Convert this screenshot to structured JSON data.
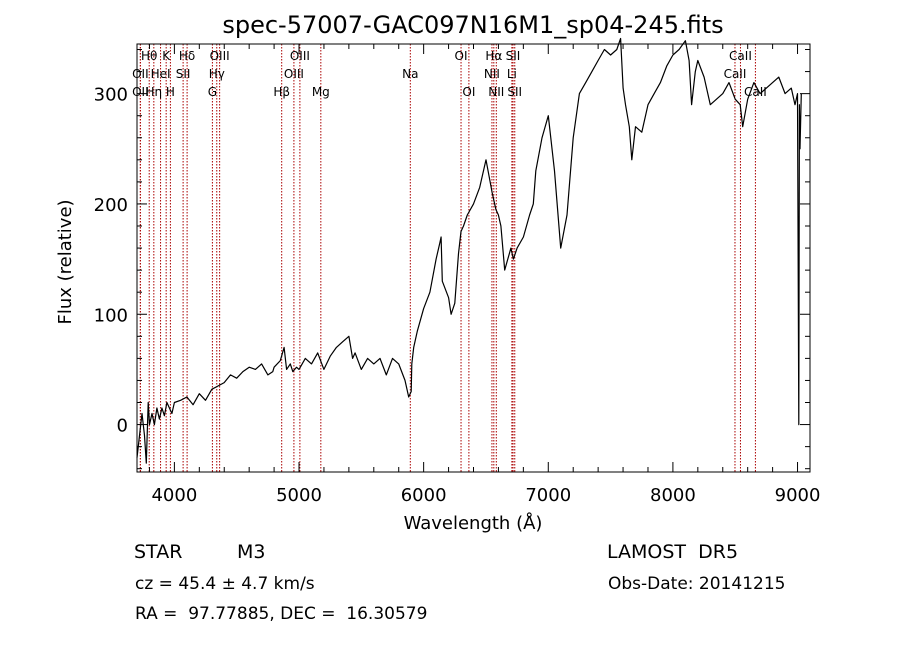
{
  "chart_data": {
    "type": "line",
    "title": "spec-57007-GAC097N16M1_sp04-245.fits",
    "xlabel": "Wavelength (Å)",
    "ylabel": "Flux (relative)",
    "xlim": [
      3700,
      9100
    ],
    "ylim": [
      -43,
      345
    ],
    "xticks": [
      4000,
      5000,
      6000,
      7000,
      8000,
      9000
    ],
    "yticks": [
      0,
      100,
      200,
      300
    ],
    "grid": false,
    "line_color": "#000000",
    "marker_color": "#aa0000",
    "spectrum": {
      "x": [
        3700,
        3740,
        3760,
        3775,
        3790,
        3800,
        3820,
        3840,
        3860,
        3880,
        3900,
        3920,
        3940,
        3960,
        3980,
        4000,
        4050,
        4100,
        4150,
        4200,
        4250,
        4300,
        4350,
        4400,
        4450,
        4500,
        4550,
        4600,
        4650,
        4700,
        4750,
        4790,
        4800,
        4850,
        4880,
        4900,
        4930,
        4950,
        4980,
        5000,
        5050,
        5100,
        5150,
        5200,
        5250,
        5300,
        5350,
        5400,
        5430,
        5450,
        5500,
        5550,
        5600,
        5650,
        5700,
        5750,
        5800,
        5850,
        5880,
        5900,
        5905,
        5920,
        5950,
        6000,
        6050,
        6100,
        6130,
        6140,
        6150,
        6200,
        6220,
        6250,
        6280,
        6300,
        6320,
        6350,
        6400,
        6450,
        6500,
        6550,
        6580,
        6600,
        6620,
        6650,
        6700,
        6720,
        6750,
        6800,
        6850,
        6880,
        6900,
        6950,
        7000,
        7050,
        7100,
        7150,
        7200,
        7250,
        7300,
        7350,
        7400,
        7450,
        7500,
        7550,
        7580,
        7600,
        7620,
        7650,
        7670,
        7700,
        7750,
        7800,
        7850,
        7900,
        7950,
        8000,
        8050,
        8100,
        8130,
        8150,
        8180,
        8200,
        8250,
        8280,
        8300,
        8350,
        8400,
        8450,
        8500,
        8540,
        8560,
        8600,
        8650,
        8700,
        8750,
        8800,
        8850,
        8900,
        8950,
        8980,
        9000,
        9010,
        9015,
        9020,
        9030
      ],
      "y": [
        -30,
        10,
        -10,
        -35,
        20,
        0,
        10,
        0,
        15,
        5,
        15,
        8,
        20,
        15,
        10,
        20,
        22,
        25,
        18,
        28,
        22,
        32,
        35,
        38,
        45,
        42,
        48,
        52,
        50,
        55,
        45,
        48,
        52,
        58,
        70,
        50,
        55,
        48,
        52,
        50,
        60,
        55,
        65,
        50,
        62,
        70,
        75,
        80,
        60,
        65,
        50,
        60,
        55,
        60,
        45,
        60,
        55,
        40,
        25,
        30,
        55,
        70,
        85,
        105,
        120,
        150,
        165,
        170,
        130,
        115,
        100,
        110,
        155,
        175,
        180,
        190,
        200,
        215,
        240,
        210,
        195,
        190,
        180,
        140,
        160,
        150,
        160,
        170,
        190,
        200,
        230,
        260,
        280,
        230,
        160,
        190,
        260,
        300,
        310,
        320,
        330,
        340,
        335,
        340,
        350,
        305,
        290,
        270,
        240,
        270,
        265,
        290,
        300,
        310,
        325,
        335,
        340,
        348,
        330,
        290,
        320,
        330,
        315,
        300,
        290,
        295,
        300,
        310,
        295,
        290,
        270,
        295,
        310,
        300,
        305,
        310,
        315,
        300,
        305,
        290,
        300,
        0,
        290,
        250,
        300
      ]
    },
    "lines": [
      {
        "label": "Hθ",
        "wave": 3798,
        "row": 0
      },
      {
        "label": "K",
        "wave": 3934,
        "row": 0
      },
      {
        "label": "Hδ",
        "wave": 4102,
        "row": 0
      },
      {
        "label": "OIII",
        "wave": 4363,
        "row": 0
      },
      {
        "label": "OIII",
        "wave": 5007,
        "row": 0
      },
      {
        "label": "OI",
        "wave": 6300,
        "row": 0
      },
      {
        "label": "Hα",
        "wave": 6563,
        "row": 0
      },
      {
        "label": "SII",
        "wave": 6717,
        "row": 0
      },
      {
        "label": "CaII",
        "wave": 8542,
        "row": 0
      },
      {
        "label": "OII",
        "wave": 3727,
        "row": 1
      },
      {
        "label": "HeI",
        "wave": 3889,
        "row": 1
      },
      {
        "label": "SII",
        "wave": 4070,
        "row": 1
      },
      {
        "label": "Hγ",
        "wave": 4340,
        "row": 1
      },
      {
        "label": "OIII",
        "wave": 4959,
        "row": 1
      },
      {
        "label": "Na",
        "wave": 5893,
        "row": 1
      },
      {
        "label": "NII",
        "wave": 6548,
        "row": 1
      },
      {
        "label": "Li",
        "wave": 6708,
        "row": 1
      },
      {
        "label": "CaII",
        "wave": 8498,
        "row": 1
      },
      {
        "label": "OII",
        "wave": 3727,
        "row": 2
      },
      {
        "label": "Hη",
        "wave": 3835,
        "row": 2
      },
      {
        "label": "H",
        "wave": 3968,
        "row": 2
      },
      {
        "label": "G",
        "wave": 4305,
        "row": 2
      },
      {
        "label": "Hβ",
        "wave": 4861,
        "row": 2
      },
      {
        "label": "Mg",
        "wave": 5175,
        "row": 2
      },
      {
        "label": "OI",
        "wave": 6363,
        "row": 2
      },
      {
        "label": "NII",
        "wave": 6583,
        "row": 2
      },
      {
        "label": "SII",
        "wave": 6731,
        "row": 2
      },
      {
        "label": "CaII",
        "wave": 8662,
        "row": 2
      }
    ]
  },
  "info": {
    "object_class": "STAR",
    "subclass": "M3",
    "survey": "LAMOST  DR5",
    "redshift": "cz = 45.4 ± 4.7 km/s",
    "obs_date": "Obs-Date: 20141215",
    "coords": "RA =  97.77885, DEC =  16.30579"
  }
}
